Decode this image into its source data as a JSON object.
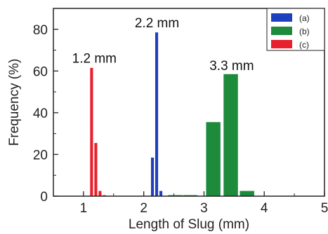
{
  "chart_data": {
    "type": "bar",
    "xlabel": "Length of Slug (mm)",
    "ylabel": "Frequency (%)",
    "xlim": [
      0.5,
      5
    ],
    "ylim": [
      0,
      90
    ],
    "xticks": [
      "1",
      "2",
      "3",
      "4",
      "5"
    ],
    "yticks": [
      "0",
      "20",
      "40",
      "60",
      "80"
    ],
    "legend_position": "top-right",
    "series": [
      {
        "name": "(a)",
        "color": "#1f3fbf",
        "bar_width": 0.06,
        "x": [
          2.15,
          2.22,
          2.29
        ],
        "values": [
          18.5,
          78.5,
          2.5
        ]
      },
      {
        "name": "(b)",
        "color": "#1e8a3c",
        "bar_width": 0.25,
        "x": [
          2.53,
          2.78,
          3.16,
          3.45,
          3.72
        ],
        "values": [
          0.5,
          0.5,
          35.5,
          58.5,
          2.5
        ]
      },
      {
        "name": "(c)",
        "color": "#e8202e",
        "bar_width": 0.06,
        "x": [
          1.14,
          1.21,
          1.28,
          1.35
        ],
        "values": [
          61.5,
          25.5,
          2.5,
          0.5
        ]
      }
    ],
    "annotations": [
      {
        "text": "1.2 mm",
        "x": 1.18,
        "y": 64
      },
      {
        "text": "2.2 mm",
        "x": 2.22,
        "y": 81
      },
      {
        "text": "3.3 mm",
        "x": 3.46,
        "y": 60.5
      }
    ]
  }
}
